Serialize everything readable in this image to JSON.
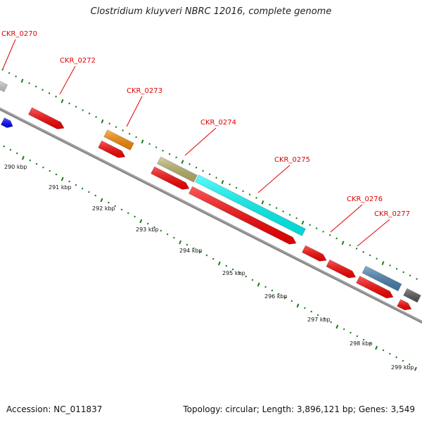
{
  "title": "Clostridium kluyveri NBRC 12016, complete genome",
  "accession_text": "Accession: NC_011837",
  "summary_text": "Topology: circular; Length: 3,896,121 bp; Genes: 3,549",
  "colors": {
    "background": "#ffffff",
    "backbone": "#888888",
    "tick": "#1a7a1a",
    "gene_label": "#e00000",
    "cds": "#ff0000",
    "misc": "#cccccc"
  },
  "scale_labels": [
    "290 kbp",
    "291 kbp",
    "292 kbp",
    "293 kbp",
    "294 kbp",
    "295 kbp",
    "296 kbp",
    "297 kbp",
    "298 kbp",
    "299 kbp"
  ],
  "gene_labels": [
    "CKR_0270",
    "CKR_0272",
    "CKR_0273",
    "CKR_0274",
    "CKR_0275",
    "CKR_0276",
    "CKR_0277"
  ],
  "outer_features": [
    {
      "gene": "CKR_0270",
      "color": "#d0d0d0"
    },
    {
      "gene": "CKR_0273",
      "color": "#ff8c00"
    },
    {
      "gene": "CKR_0274",
      "color": "#bdb76b"
    },
    {
      "gene": "CKR_0275",
      "color": "#00ffff"
    },
    {
      "gene": "CKR_0277",
      "color": "#4682b4"
    },
    {
      "gene": "unlabeled",
      "color": "#555555"
    }
  ],
  "inner_features": [
    {
      "gene": "unlabeled",
      "color": "#0000ff"
    },
    {
      "gene": "CKR_0272",
      "color": "#ff0000"
    },
    {
      "gene": "CKR_0273",
      "color": "#ff0000"
    },
    {
      "gene": "CKR_0274",
      "color": "#ff0000"
    },
    {
      "gene": "CKR_0275",
      "color": "#ff0000"
    },
    {
      "gene": "CKR_0276",
      "color": "#ff0000"
    },
    {
      "gene": "CKR_0277",
      "color": "#ff0000"
    },
    {
      "gene": "unlabeled",
      "color": "#ff0000"
    }
  ]
}
